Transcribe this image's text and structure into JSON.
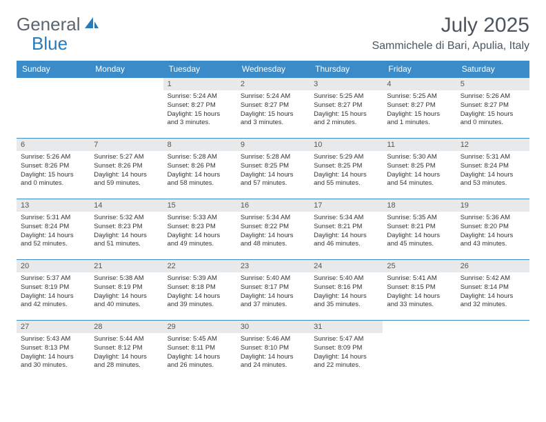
{
  "brand": {
    "part1": "General",
    "part2": "Blue"
  },
  "title": "July 2025",
  "location": "Sammichele di Bari, Apulia, Italy",
  "colors": {
    "header_bg": "#3b8bc9",
    "header_text": "#ffffff",
    "daynum_bg": "#e8e9ea",
    "border": "#3b8bc9",
    "text": "#333333",
    "brand_gray": "#5a6570",
    "brand_blue": "#2a7ab8"
  },
  "weekdays": [
    "Sunday",
    "Monday",
    "Tuesday",
    "Wednesday",
    "Thursday",
    "Friday",
    "Saturday"
  ],
  "weeks": [
    [
      null,
      null,
      {
        "num": "1",
        "sunrise": "5:24 AM",
        "sunset": "8:27 PM",
        "dhrs": "15",
        "dmin": "3"
      },
      {
        "num": "2",
        "sunrise": "5:24 AM",
        "sunset": "8:27 PM",
        "dhrs": "15",
        "dmin": "3"
      },
      {
        "num": "3",
        "sunrise": "5:25 AM",
        "sunset": "8:27 PM",
        "dhrs": "15",
        "dmin": "2"
      },
      {
        "num": "4",
        "sunrise": "5:25 AM",
        "sunset": "8:27 PM",
        "dhrs": "15",
        "dmin": "1"
      },
      {
        "num": "5",
        "sunrise": "5:26 AM",
        "sunset": "8:27 PM",
        "dhrs": "15",
        "dmin": "0"
      }
    ],
    [
      {
        "num": "6",
        "sunrise": "5:26 AM",
        "sunset": "8:26 PM",
        "dhrs": "15",
        "dmin": "0"
      },
      {
        "num": "7",
        "sunrise": "5:27 AM",
        "sunset": "8:26 PM",
        "dhrs": "14",
        "dmin": "59"
      },
      {
        "num": "8",
        "sunrise": "5:28 AM",
        "sunset": "8:26 PM",
        "dhrs": "14",
        "dmin": "58"
      },
      {
        "num": "9",
        "sunrise": "5:28 AM",
        "sunset": "8:25 PM",
        "dhrs": "14",
        "dmin": "57"
      },
      {
        "num": "10",
        "sunrise": "5:29 AM",
        "sunset": "8:25 PM",
        "dhrs": "14",
        "dmin": "55"
      },
      {
        "num": "11",
        "sunrise": "5:30 AM",
        "sunset": "8:25 PM",
        "dhrs": "14",
        "dmin": "54"
      },
      {
        "num": "12",
        "sunrise": "5:31 AM",
        "sunset": "8:24 PM",
        "dhrs": "14",
        "dmin": "53"
      }
    ],
    [
      {
        "num": "13",
        "sunrise": "5:31 AM",
        "sunset": "8:24 PM",
        "dhrs": "14",
        "dmin": "52"
      },
      {
        "num": "14",
        "sunrise": "5:32 AM",
        "sunset": "8:23 PM",
        "dhrs": "14",
        "dmin": "51"
      },
      {
        "num": "15",
        "sunrise": "5:33 AM",
        "sunset": "8:23 PM",
        "dhrs": "14",
        "dmin": "49"
      },
      {
        "num": "16",
        "sunrise": "5:34 AM",
        "sunset": "8:22 PM",
        "dhrs": "14",
        "dmin": "48"
      },
      {
        "num": "17",
        "sunrise": "5:34 AM",
        "sunset": "8:21 PM",
        "dhrs": "14",
        "dmin": "46"
      },
      {
        "num": "18",
        "sunrise": "5:35 AM",
        "sunset": "8:21 PM",
        "dhrs": "14",
        "dmin": "45"
      },
      {
        "num": "19",
        "sunrise": "5:36 AM",
        "sunset": "8:20 PM",
        "dhrs": "14",
        "dmin": "43"
      }
    ],
    [
      {
        "num": "20",
        "sunrise": "5:37 AM",
        "sunset": "8:19 PM",
        "dhrs": "14",
        "dmin": "42"
      },
      {
        "num": "21",
        "sunrise": "5:38 AM",
        "sunset": "8:19 PM",
        "dhrs": "14",
        "dmin": "40"
      },
      {
        "num": "22",
        "sunrise": "5:39 AM",
        "sunset": "8:18 PM",
        "dhrs": "14",
        "dmin": "39"
      },
      {
        "num": "23",
        "sunrise": "5:40 AM",
        "sunset": "8:17 PM",
        "dhrs": "14",
        "dmin": "37"
      },
      {
        "num": "24",
        "sunrise": "5:40 AM",
        "sunset": "8:16 PM",
        "dhrs": "14",
        "dmin": "35"
      },
      {
        "num": "25",
        "sunrise": "5:41 AM",
        "sunset": "8:15 PM",
        "dhrs": "14",
        "dmin": "33"
      },
      {
        "num": "26",
        "sunrise": "5:42 AM",
        "sunset": "8:14 PM",
        "dhrs": "14",
        "dmin": "32"
      }
    ],
    [
      {
        "num": "27",
        "sunrise": "5:43 AM",
        "sunset": "8:13 PM",
        "dhrs": "14",
        "dmin": "30"
      },
      {
        "num": "28",
        "sunrise": "5:44 AM",
        "sunset": "8:12 PM",
        "dhrs": "14",
        "dmin": "28"
      },
      {
        "num": "29",
        "sunrise": "5:45 AM",
        "sunset": "8:11 PM",
        "dhrs": "14",
        "dmin": "26"
      },
      {
        "num": "30",
        "sunrise": "5:46 AM",
        "sunset": "8:10 PM",
        "dhrs": "14",
        "dmin": "24"
      },
      {
        "num": "31",
        "sunrise": "5:47 AM",
        "sunset": "8:09 PM",
        "dhrs": "14",
        "dmin": "22"
      },
      null,
      null
    ]
  ]
}
